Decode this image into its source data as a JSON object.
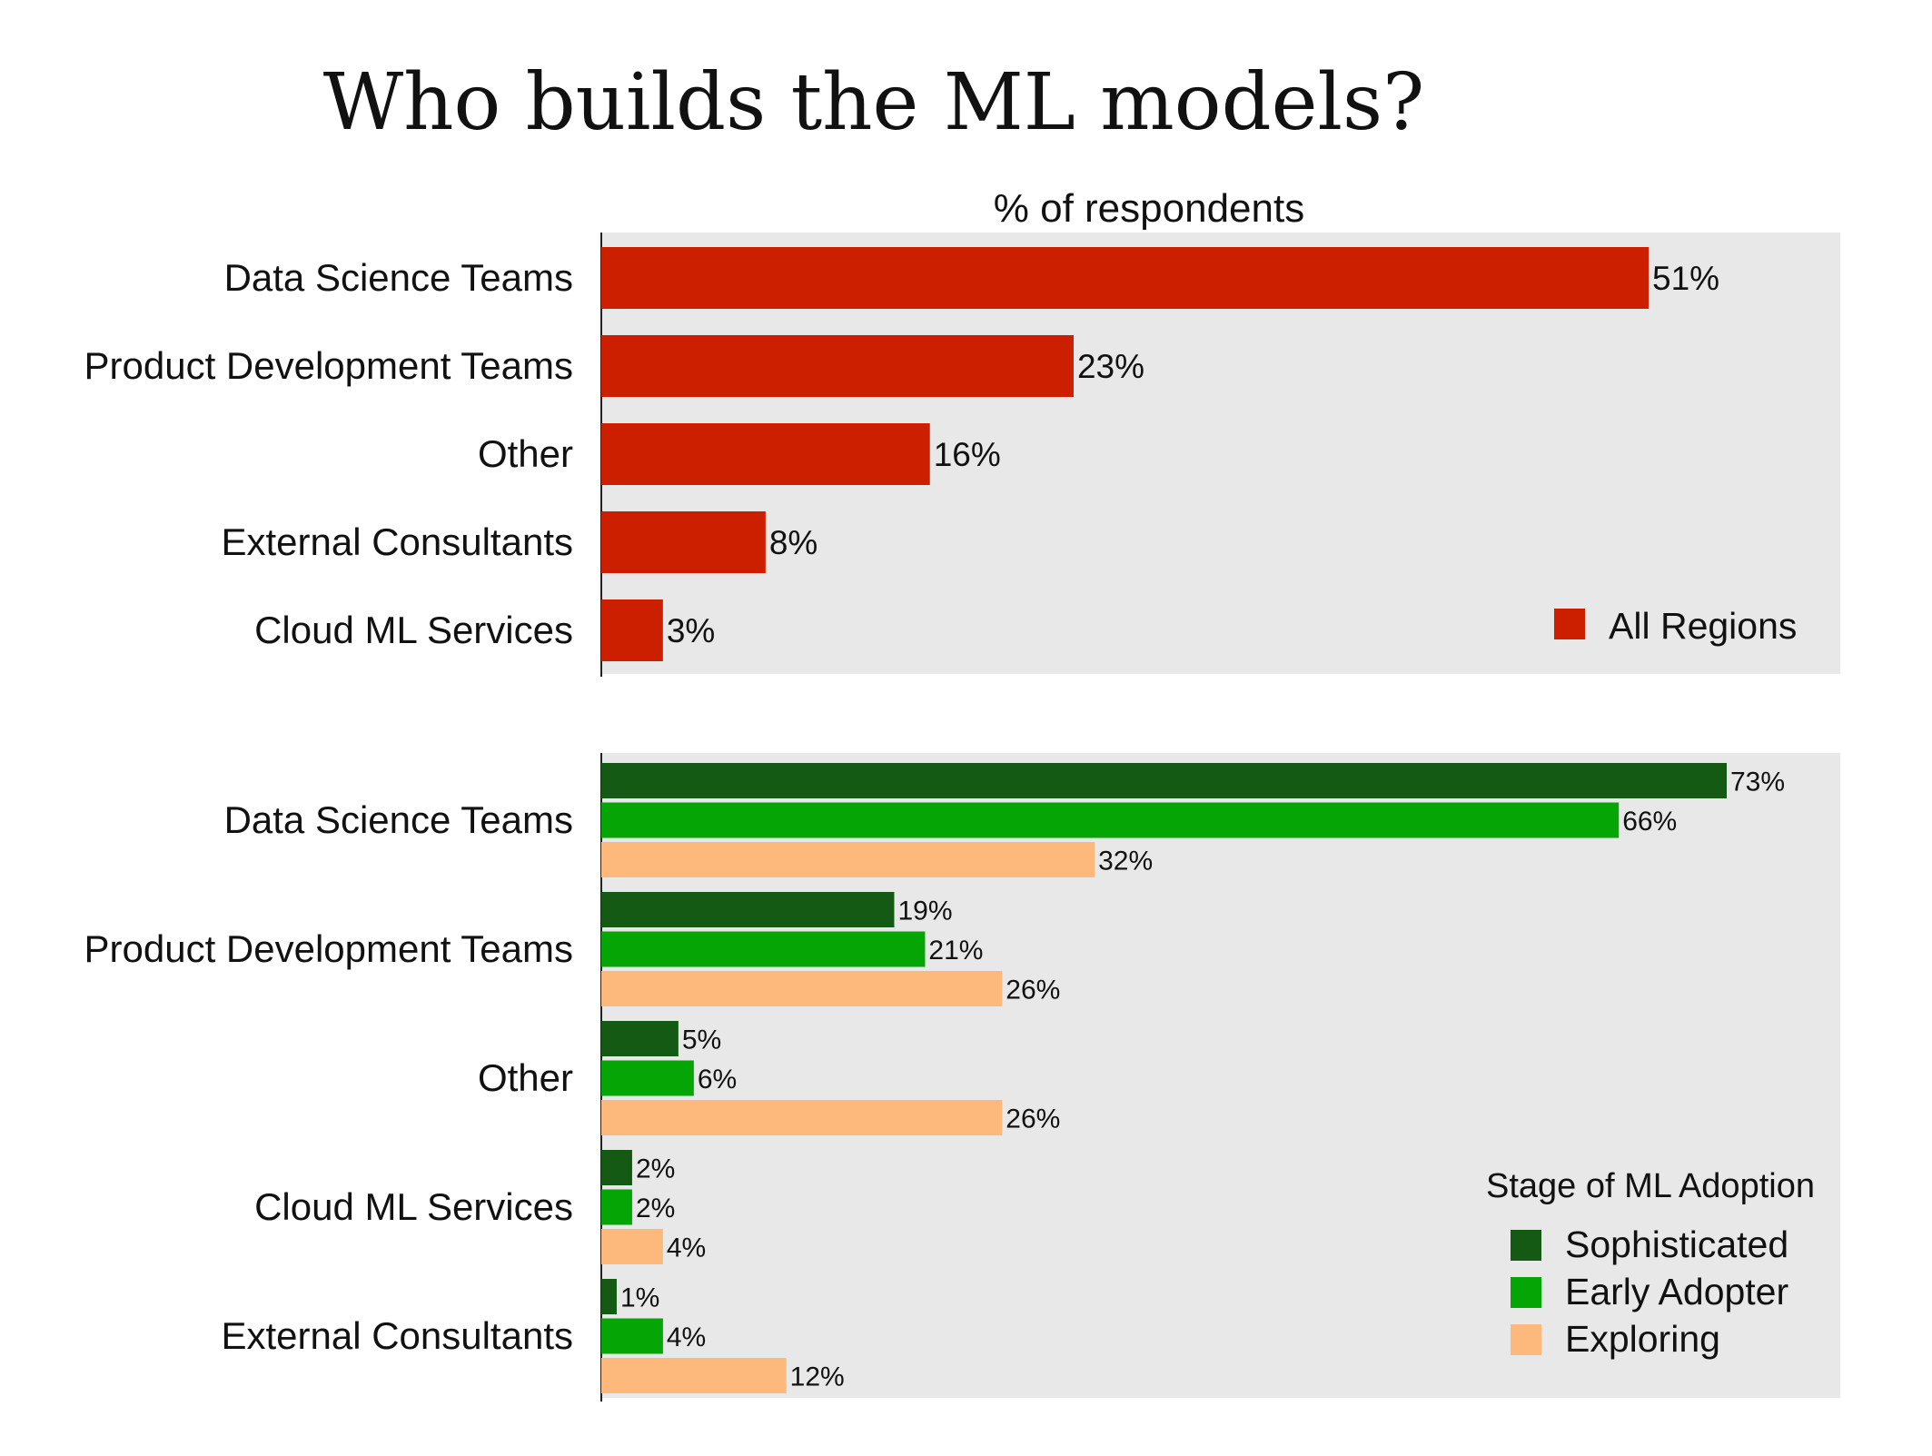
{
  "title": "Who builds the ML models?",
  "chart_data": [
    {
      "type": "bar",
      "orientation": "horizontal",
      "xlabel": "% of respondents",
      "xlim": [
        0,
        60
      ],
      "categories": [
        "Data Science Teams",
        "Product Development Teams",
        "Other",
        "External Consultants",
        "Cloud ML Services"
      ],
      "series": [
        {
          "name": "All Regions",
          "color": "#cc1f00",
          "values": [
            51,
            23,
            16,
            8,
            3
          ],
          "labels": [
            "51%",
            "23%",
            "16%",
            "8%",
            "3%"
          ]
        }
      ],
      "legend": {
        "position": "bottom-right",
        "entries": [
          "All Regions"
        ]
      },
      "grid": false
    },
    {
      "type": "bar",
      "orientation": "horizontal",
      "xlim": [
        0,
        80
      ],
      "categories": [
        "Data Science Teams",
        "Product Development Teams",
        "Other",
        "Cloud ML Services",
        "External Consultants"
      ],
      "series": [
        {
          "name": "Sophisticated",
          "color": "#145a14",
          "values": [
            73,
            19,
            5,
            2,
            1
          ],
          "labels": [
            "73%",
            "19%",
            "5%",
            "2%",
            "1%"
          ]
        },
        {
          "name": "Early Adopter",
          "color": "#06a506",
          "values": [
            66,
            21,
            6,
            2,
            4
          ],
          "labels": [
            "66%",
            "21%",
            "6%",
            "2%",
            "4%"
          ]
        },
        {
          "name": "Exploring",
          "color": "#fdb87c",
          "values": [
            32,
            26,
            26,
            4,
            12
          ],
          "labels": [
            "32%",
            "26%",
            "26%",
            "4%",
            "12%"
          ]
        }
      ],
      "legend": {
        "title": "Stage of ML Adoption",
        "position": "bottom-right",
        "entries": [
          "Sophisticated",
          "Early Adopter",
          "Exploring"
        ]
      },
      "grid": false
    }
  ]
}
